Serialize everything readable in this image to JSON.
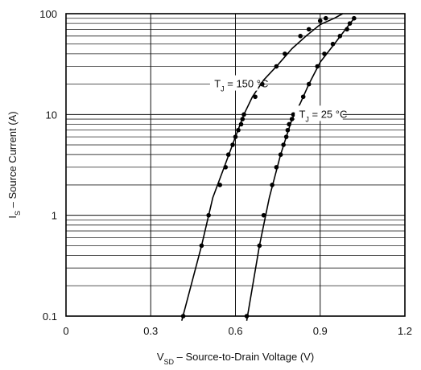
{
  "chart_data": {
    "type": "scatter",
    "title": "",
    "xlabel": {
      "main": "V",
      "sub": "SD",
      "rest": " – Source-to-Drain Voltage (V)"
    },
    "ylabel": {
      "main": "I",
      "sub": "S",
      "rest": " – Source Current (A)"
    },
    "xlim": [
      0,
      1.2
    ],
    "ylim": [
      0.1,
      100
    ],
    "y_scale": "log",
    "grid": true,
    "x_ticks": [
      "0",
      "0.3",
      "0.6",
      "0.9",
      "1.2"
    ],
    "y_ticks": [
      "0.1",
      "1",
      "10",
      "100"
    ],
    "series": [
      {
        "name": {
          "main": "T",
          "sub": "J",
          "rest": " = 150 °C"
        },
        "points": [
          [
            0.415,
            0.1
          ],
          [
            0.48,
            0.5
          ],
          [
            0.505,
            1.0
          ],
          [
            0.545,
            2.0
          ],
          [
            0.565,
            3.0
          ],
          [
            0.575,
            4.0
          ],
          [
            0.59,
            5.0
          ],
          [
            0.6,
            6.0
          ],
          [
            0.61,
            7.0
          ],
          [
            0.62,
            8.0
          ],
          [
            0.625,
            9.0
          ],
          [
            0.63,
            10
          ],
          [
            0.67,
            15
          ],
          [
            0.695,
            20
          ],
          [
            0.745,
            30
          ],
          [
            0.775,
            40
          ],
          [
            0.83,
            60
          ],
          [
            0.86,
            70
          ],
          [
            0.9,
            85
          ],
          [
            0.92,
            90
          ]
        ],
        "curve": [
          [
            0.41,
            0.09
          ],
          [
            0.48,
            0.5
          ],
          [
            0.52,
            1.5
          ],
          [
            0.56,
            3.0
          ],
          [
            0.6,
            6.0
          ],
          [
            0.63,
            10
          ],
          [
            0.66,
            15
          ],
          [
            0.7,
            22
          ],
          [
            0.75,
            31
          ],
          [
            0.8,
            45
          ],
          [
            0.85,
            60
          ],
          [
            0.9,
            78
          ],
          [
            0.95,
            90
          ],
          [
            0.98,
            100
          ]
        ]
      },
      {
        "name": {
          "main": "T",
          "sub": "J",
          "rest": " = 25 °C"
        },
        "points": [
          [
            0.64,
            0.1
          ],
          [
            0.685,
            0.5
          ],
          [
            0.7,
            1.0
          ],
          [
            0.73,
            2.0
          ],
          [
            0.745,
            3.0
          ],
          [
            0.76,
            4.0
          ],
          [
            0.77,
            5.0
          ],
          [
            0.78,
            6.0
          ],
          [
            0.785,
            7.0
          ],
          [
            0.79,
            8.0
          ],
          [
            0.8,
            9.0
          ],
          [
            0.805,
            10
          ],
          [
            0.84,
            15
          ],
          [
            0.86,
            20
          ],
          [
            0.89,
            30
          ],
          [
            0.915,
            40
          ],
          [
            0.945,
            50
          ],
          [
            0.97,
            60
          ],
          [
            0.995,
            70
          ],
          [
            1.005,
            80
          ],
          [
            1.02,
            90
          ]
        ],
        "curve": [
          [
            0.64,
            0.09
          ],
          [
            0.685,
            0.5
          ],
          [
            0.72,
            1.5
          ],
          [
            0.76,
            4.0
          ],
          [
            0.8,
            9.0
          ],
          [
            0.83,
            13
          ],
          [
            0.86,
            20
          ],
          [
            0.9,
            33
          ],
          [
            0.95,
            50
          ],
          [
            0.99,
            70
          ],
          [
            1.02,
            90
          ]
        ]
      }
    ]
  }
}
